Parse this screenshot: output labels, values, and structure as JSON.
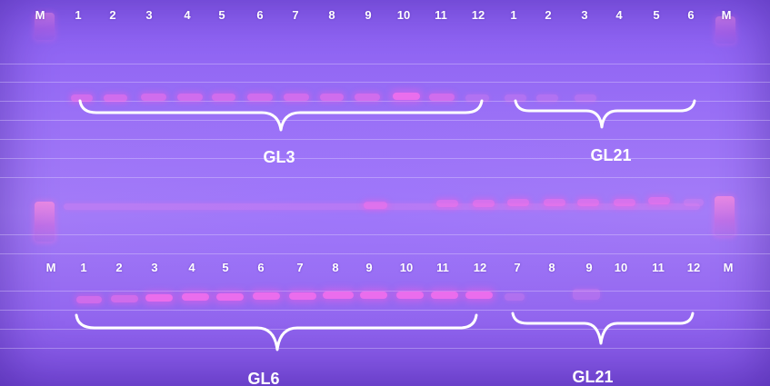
{
  "top_row": {
    "lane_labels": [
      "M",
      "1",
      "2",
      "3",
      "4",
      "5",
      "6",
      "7",
      "8",
      "9",
      "10",
      "11",
      "12",
      "1",
      "2",
      "3",
      "4",
      "5",
      "6",
      "M"
    ],
    "groups": [
      "GL3",
      "GL21"
    ]
  },
  "bottom_row": {
    "lane_labels": [
      "M",
      "1",
      "2",
      "3",
      "4",
      "5",
      "6",
      "7",
      "8",
      "9",
      "10",
      "11",
      "12",
      "7",
      "8",
      "9",
      "10",
      "11",
      "12",
      "M"
    ],
    "groups": [
      "GL6",
      "GL21"
    ]
  }
}
